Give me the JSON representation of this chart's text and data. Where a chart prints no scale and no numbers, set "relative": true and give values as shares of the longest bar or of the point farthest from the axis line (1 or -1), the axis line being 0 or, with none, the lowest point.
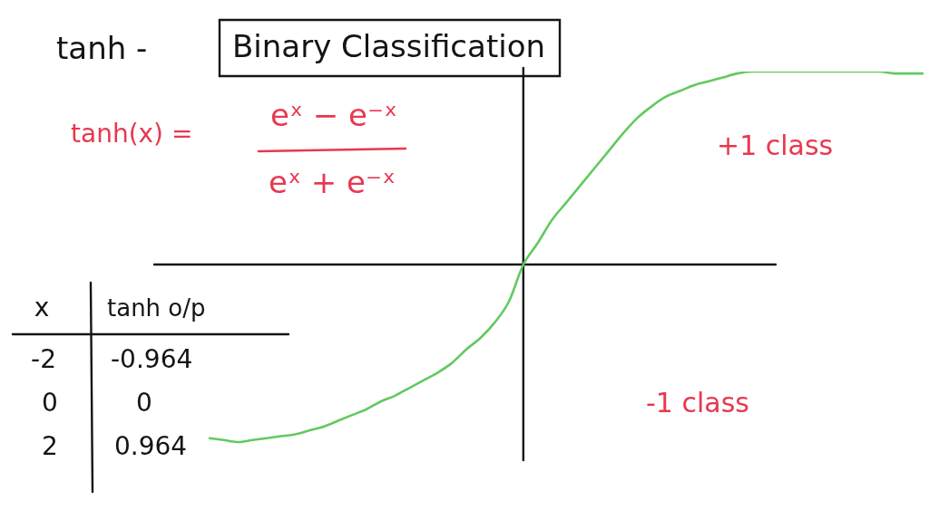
{
  "chart_data": {
    "type": "line",
    "title": "tanh -",
    "subtitle": "Binary Classification",
    "annotations": [
      "tanh(x) =",
      "eˣ − e⁻ˣ",
      "eˣ + e⁻ˣ",
      "+1 class",
      "-1 class",
      "x",
      "tanh o/p",
      "-2",
      "-0.964",
      "0",
      "0",
      "2",
      "0.964"
    ],
    "categories": [
      null,
      null,
      null,
      null,
      null,
      null,
      null,
      null,
      null,
      null,
      null,
      null,
      null,
      null,
      null,
      null,
      null,
      null,
      null,
      null,
      null,
      null,
      null,
      null,
      null,
      null,
      null,
      null,
      null,
      null,
      null,
      null,
      null,
      null,
      null,
      null,
      null,
      null,
      null,
      null,
      null,
      null,
      null,
      null,
      null,
      null,
      null,
      null,
      null,
      null,
      null
    ],
    "values": [
      -0.9,
      -0.91,
      -0.92,
      -0.91,
      -0.9,
      -0.89,
      -0.88,
      -0.86,
      -0.84,
      -0.81,
      -0.78,
      -0.75,
      -0.71,
      -0.68,
      -0.64,
      -0.6,
      -0.56,
      -0.51,
      -0.44,
      -0.38,
      -0.3,
      -0.19,
      0,
      0.11,
      0.23,
      0.32,
      0.41,
      0.5,
      0.59,
      0.68,
      0.76,
      0.82,
      0.87,
      0.9,
      0.93,
      0.95,
      0.97,
      0.99,
      1,
      1,
      1,
      1,
      1,
      1,
      1,
      1,
      1,
      1,
      0.99,
      0.99,
      0.99
    ],
    "color": "#63c960",
    "relative": true,
    "marker": "none",
    "line_style": "solid"
  }
}
